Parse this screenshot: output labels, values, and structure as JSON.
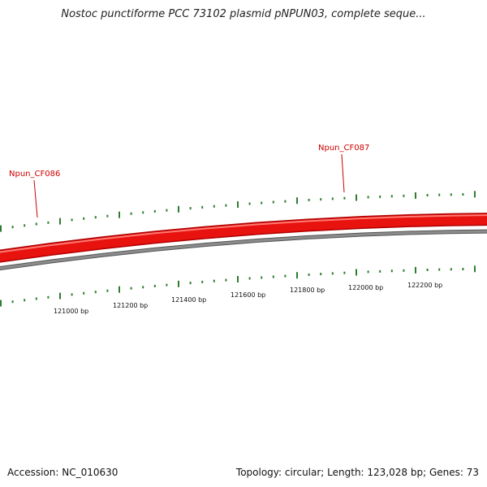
{
  "header": {
    "title": "Nostoc punctiforme PCC 73102 plasmid pNPUN03, complete seque..."
  },
  "footer": {
    "accession": "Accession: NC_010630",
    "summary": "Topology: circular; Length: 123,028 bp; Genes: 73"
  },
  "colors": {
    "backbone": "#e8120f",
    "backbone_highlight": "#ff7a72",
    "inner_ring": "#8c8c8c",
    "tick": "#2e7d2e",
    "gene_label": "#cc0000"
  },
  "genes": [
    {
      "name": "Npun_CF086"
    },
    {
      "name": "Npun_CF087"
    }
  ],
  "scale_labels": [
    {
      "label": "121000 bp"
    },
    {
      "label": "121200 bp"
    },
    {
      "label": "121400 bp"
    },
    {
      "label": "121600 bp"
    },
    {
      "label": "121800 bp"
    },
    {
      "label": "122000 bp"
    },
    {
      "label": "122200 bp"
    }
  ]
}
